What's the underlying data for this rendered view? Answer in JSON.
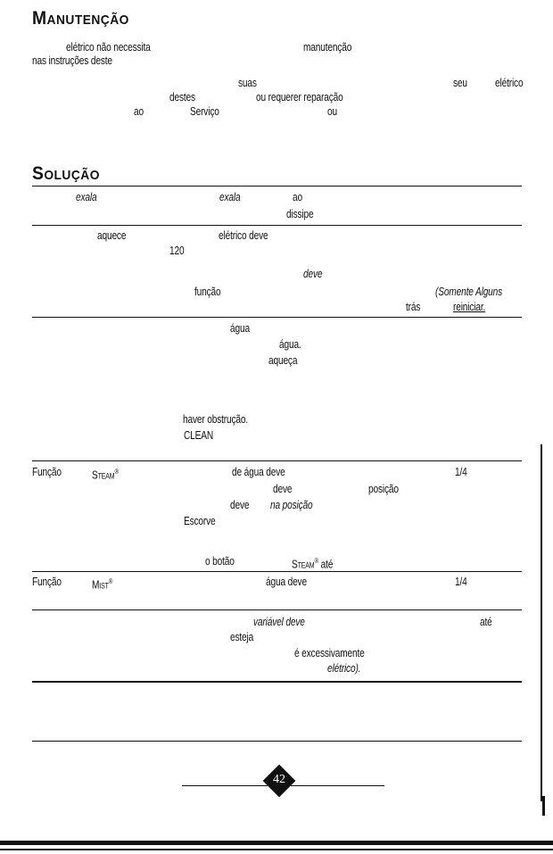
{
  "page": {
    "heading_manutencao": "Manutenção",
    "heading_solucao": "Solução",
    "page_number": "42"
  },
  "manutencao": {
    "l1a": "elétrico não necessita",
    "l1b": "manutenção",
    "l2a": "nas instruções deste",
    "l3a": "suas",
    "l3b": "seu",
    "l3c": "elétrico",
    "l4a": "destes",
    "l4b": "ou requerer reparação",
    "l5a": "ao",
    "l5b": "Serviço",
    "l5c": "ou"
  },
  "sol": {
    "r1a": "exala",
    "r1b": "exala",
    "r1c": "ao",
    "r1d": "dissipe",
    "r2a": "aquece",
    "r2b": "elétrico deve",
    "r2c": "120",
    "r2d": "deve",
    "r2e": "função",
    "r2f": "(Somente Alguns",
    "r2g": "trás",
    "r2h": "reiniciar.",
    "r3a": "água",
    "r3b": "água.",
    "r3c": "aqueça",
    "r3d": "haver obstrução.",
    "r3e": "CLEAN",
    "r4a": "Função",
    "r4b": "Steam",
    "r4c": "de água deve",
    "r4d": "1/4",
    "r4e": "deve",
    "r4f": "posição",
    "r4g": "deve",
    "r4h": "na posição",
    "r4i": "Escorve",
    "r4j": "o botão",
    "r4k": "Steam",
    "r4l": "até",
    "r5a": "Função",
    "r5b": "Mist",
    "r5c": "água deve",
    "r5d": "1/4",
    "r6a": "variável deve",
    "r6b": "até",
    "r6c": "esteja",
    "r6d": "é excessivamente",
    "r6e": "elétrico)."
  },
  "reg": "®"
}
